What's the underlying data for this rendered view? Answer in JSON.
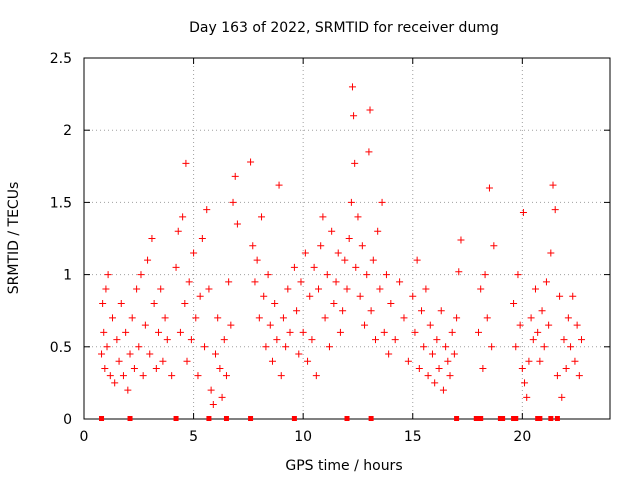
{
  "chart_data": {
    "type": "scatter",
    "title": "Day 163 of 2022, SRMTID for receiver dumg",
    "xlabel": "GPS time / hours",
    "ylabel": "SRMTID / TECUs",
    "xlim": [
      0,
      24
    ],
    "ylim": [
      0,
      2.5
    ],
    "xticks": [
      "0",
      "5",
      "10",
      "15",
      "20"
    ],
    "yticks": [
      "0",
      "0.5",
      "1",
      "1.5",
      "2",
      "2.5"
    ],
    "grid": true,
    "marker": "plus",
    "color": "#ff0000",
    "series": [
      {
        "points": [
          [
            0.8,
            0.45
          ],
          [
            0.85,
            0.8
          ],
          [
            0.9,
            0.6
          ],
          [
            0.95,
            0.35
          ],
          [
            1.0,
            0.9
          ],
          [
            1.05,
            0.5
          ],
          [
            1.1,
            1.0
          ],
          [
            1.2,
            0.3
          ],
          [
            1.3,
            0.7
          ],
          [
            1.4,
            0.25
          ],
          [
            1.5,
            0.55
          ],
          [
            1.6,
            0.4
          ],
          [
            1.7,
            0.8
          ],
          [
            1.8,
            0.3
          ],
          [
            1.9,
            0.6
          ],
          [
            2.0,
            0.2
          ],
          [
            2.1,
            0.45
          ],
          [
            2.2,
            0.7
          ],
          [
            2.3,
            0.35
          ],
          [
            2.4,
            0.9
          ],
          [
            2.5,
            0.5
          ],
          [
            2.6,
            1.0
          ],
          [
            2.7,
            0.3
          ],
          [
            2.8,
            0.65
          ],
          [
            2.9,
            1.1
          ],
          [
            3.0,
            0.45
          ],
          [
            3.1,
            1.25
          ],
          [
            3.2,
            0.8
          ],
          [
            3.3,
            0.35
          ],
          [
            3.4,
            0.6
          ],
          [
            3.5,
            0.9
          ],
          [
            3.6,
            0.4
          ],
          [
            3.7,
            0.7
          ],
          [
            3.8,
            0.55
          ],
          [
            4.0,
            0.3
          ],
          [
            4.2,
            1.05
          ],
          [
            4.3,
            1.3
          ],
          [
            4.4,
            0.6
          ],
          [
            4.5,
            1.4
          ],
          [
            4.6,
            0.8
          ],
          [
            4.65,
            1.77
          ],
          [
            4.7,
            0.4
          ],
          [
            4.8,
            0.95
          ],
          [
            4.9,
            0.55
          ],
          [
            5.0,
            1.15
          ],
          [
            5.1,
            0.7
          ],
          [
            5.2,
            0.3
          ],
          [
            5.3,
            0.85
          ],
          [
            5.4,
            1.25
          ],
          [
            5.5,
            0.5
          ],
          [
            5.6,
            1.45
          ],
          [
            5.7,
            0.9
          ],
          [
            5.8,
            0.2
          ],
          [
            5.9,
            0.1
          ],
          [
            6.0,
            0.45
          ],
          [
            6.1,
            0.7
          ],
          [
            6.2,
            0.35
          ],
          [
            6.3,
            0.15
          ],
          [
            6.4,
            0.55
          ],
          [
            6.5,
            0.3
          ],
          [
            6.6,
            0.95
          ],
          [
            6.7,
            0.65
          ],
          [
            6.8,
            1.5
          ],
          [
            6.9,
            1.68
          ],
          [
            7.0,
            1.35
          ],
          [
            7.6,
            1.78
          ],
          [
            7.7,
            1.2
          ],
          [
            7.8,
            0.95
          ],
          [
            7.9,
            1.1
          ],
          [
            8.0,
            0.7
          ],
          [
            8.1,
            1.4
          ],
          [
            8.2,
            0.85
          ],
          [
            8.3,
            0.5
          ],
          [
            8.4,
            1.0
          ],
          [
            8.5,
            0.65
          ],
          [
            8.6,
            0.4
          ],
          [
            8.7,
            0.8
          ],
          [
            8.8,
            0.55
          ],
          [
            8.9,
            1.62
          ],
          [
            9.0,
            0.3
          ],
          [
            9.1,
            0.7
          ],
          [
            9.2,
            0.5
          ],
          [
            9.3,
            0.9
          ],
          [
            9.4,
            0.6
          ],
          [
            9.6,
            1.05
          ],
          [
            9.7,
            0.75
          ],
          [
            9.8,
            0.45
          ],
          [
            9.9,
            0.95
          ],
          [
            10.0,
            0.6
          ],
          [
            10.1,
            1.15
          ],
          [
            10.2,
            0.4
          ],
          [
            10.3,
            0.85
          ],
          [
            10.4,
            0.55
          ],
          [
            10.5,
            1.05
          ],
          [
            10.6,
            0.3
          ],
          [
            10.7,
            0.9
          ],
          [
            10.8,
            1.2
          ],
          [
            10.9,
            1.4
          ],
          [
            11.0,
            0.7
          ],
          [
            11.1,
            1.0
          ],
          [
            11.2,
            0.5
          ],
          [
            11.3,
            1.3
          ],
          [
            11.4,
            0.8
          ],
          [
            11.5,
            0.95
          ],
          [
            11.6,
            1.15
          ],
          [
            11.7,
            0.6
          ],
          [
            11.8,
            0.75
          ],
          [
            11.9,
            1.1
          ],
          [
            12.0,
            0.9
          ],
          [
            12.1,
            1.25
          ],
          [
            12.2,
            1.5
          ],
          [
            12.25,
            2.3
          ],
          [
            12.3,
            2.1
          ],
          [
            12.35,
            1.77
          ],
          [
            12.4,
            1.05
          ],
          [
            12.5,
            1.4
          ],
          [
            12.6,
            0.85
          ],
          [
            12.7,
            1.2
          ],
          [
            12.8,
            0.65
          ],
          [
            12.9,
            1.0
          ],
          [
            13.0,
            1.85
          ],
          [
            13.05,
            2.14
          ],
          [
            13.1,
            0.75
          ],
          [
            13.2,
            1.1
          ],
          [
            13.3,
            0.55
          ],
          [
            13.4,
            1.3
          ],
          [
            13.5,
            0.9
          ],
          [
            13.6,
            1.5
          ],
          [
            13.7,
            0.6
          ],
          [
            13.8,
            1.0
          ],
          [
            13.9,
            0.45
          ],
          [
            14.0,
            0.8
          ],
          [
            14.2,
            0.55
          ],
          [
            14.4,
            0.95
          ],
          [
            14.6,
            0.7
          ],
          [
            14.8,
            0.4
          ],
          [
            15.0,
            0.85
          ],
          [
            15.1,
            0.6
          ],
          [
            15.2,
            1.1
          ],
          [
            15.3,
            0.35
          ],
          [
            15.4,
            0.75
          ],
          [
            15.5,
            0.5
          ],
          [
            15.6,
            0.9
          ],
          [
            15.7,
            0.3
          ],
          [
            15.8,
            0.65
          ],
          [
            15.9,
            0.45
          ],
          [
            16.0,
            0.25
          ],
          [
            16.1,
            0.55
          ],
          [
            16.2,
            0.35
          ],
          [
            16.3,
            0.75
          ],
          [
            16.4,
            0.2
          ],
          [
            16.5,
            0.5
          ],
          [
            16.6,
            0.4
          ],
          [
            16.7,
            0.3
          ],
          [
            16.8,
            0.6
          ],
          [
            16.9,
            0.45
          ],
          [
            17.0,
            0.7
          ],
          [
            17.1,
            1.02
          ],
          [
            17.2,
            1.24
          ],
          [
            18.0,
            0.6
          ],
          [
            18.1,
            0.9
          ],
          [
            18.2,
            0.35
          ],
          [
            18.3,
            1.0
          ],
          [
            18.4,
            0.7
          ],
          [
            18.5,
            1.6
          ],
          [
            18.6,
            0.5
          ],
          [
            18.7,
            1.2
          ],
          [
            19.6,
            0.8
          ],
          [
            19.7,
            0.5
          ],
          [
            19.8,
            1.0
          ],
          [
            19.9,
            0.65
          ],
          [
            20.0,
            0.35
          ],
          [
            20.05,
            1.43
          ],
          [
            20.1,
            0.25
          ],
          [
            20.2,
            0.15
          ],
          [
            20.3,
            0.4
          ],
          [
            20.4,
            0.7
          ],
          [
            20.5,
            0.55
          ],
          [
            20.6,
            0.9
          ],
          [
            20.7,
            0.6
          ],
          [
            20.8,
            0.4
          ],
          [
            20.9,
            0.75
          ],
          [
            21.0,
            0.5
          ],
          [
            21.1,
            0.95
          ],
          [
            21.2,
            0.65
          ],
          [
            21.3,
            1.15
          ],
          [
            21.4,
            1.62
          ],
          [
            21.5,
            1.45
          ],
          [
            21.6,
            0.3
          ],
          [
            21.7,
            0.85
          ],
          [
            21.8,
            0.15
          ],
          [
            21.9,
            0.55
          ],
          [
            22.0,
            0.35
          ],
          [
            22.1,
            0.7
          ],
          [
            22.2,
            0.5
          ],
          [
            22.3,
            0.85
          ],
          [
            22.4,
            0.4
          ],
          [
            22.5,
            0.65
          ],
          [
            22.6,
            0.3
          ],
          [
            22.7,
            0.55
          ]
        ]
      }
    ],
    "baseline_markers": [
      0.8,
      2.1,
      4.2,
      5.7,
      6.5,
      7.6,
      9.6,
      12.0,
      13.1,
      17.0,
      17.9,
      18.1,
      19.0,
      19.1,
      19.6,
      19.7,
      20.7,
      20.8,
      21.3,
      21.6
    ]
  }
}
